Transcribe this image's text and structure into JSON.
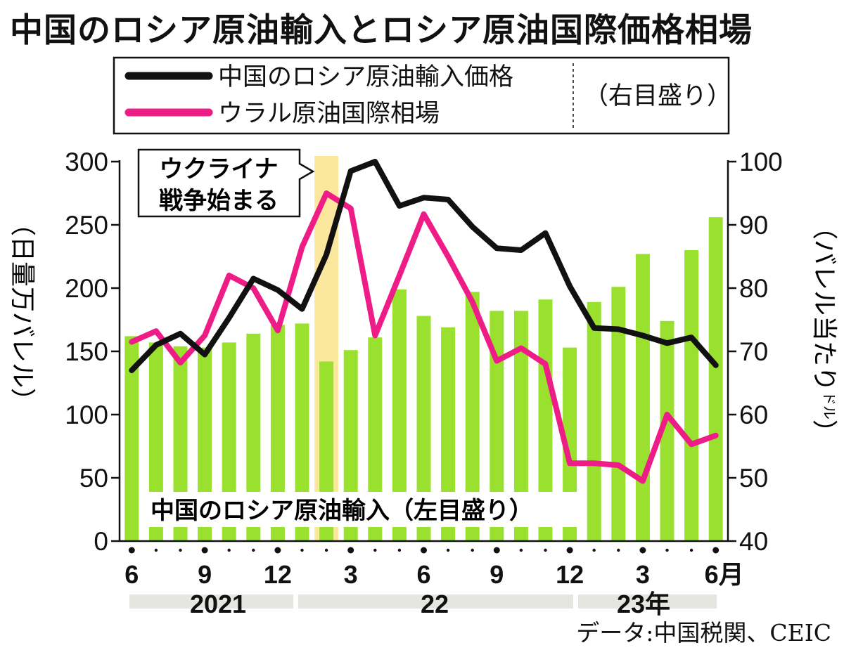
{
  "title": "中国のロシア原油輸入とロシア原油国際価格相場",
  "legend": {
    "price_label": "中国のロシア原油輸入価格",
    "market_label": "ウラル原油国際相場",
    "right_axis_note": "（右目盛り）"
  },
  "annotation": {
    "line1": "ウクライナ",
    "line2": "戦争始まる"
  },
  "bar_label": "中国のロシア原油輸入（左目盛り）",
  "left_axis_label": "（日量万バレル）",
  "right_axis_label": "（バレル当たり",
  "right_axis_unit": "ドル",
  "right_axis_close": "）",
  "source": "データ:中国税関、CEIC",
  "year_labels": [
    "2021",
    "22",
    "23年"
  ],
  "x_tick_labels": [
    "6",
    "9",
    "12",
    "3",
    "6",
    "9",
    "12",
    "3",
    "6月"
  ],
  "colors": {
    "bars": "#99e02f",
    "price_line": "#111111",
    "market_line": "#ee1c87",
    "highlight": "#fbe79d",
    "year_band": "#e4e6df"
  },
  "chart_data": {
    "type": "bar+line",
    "months": [
      "2021-06",
      "2021-07",
      "2021-08",
      "2021-09",
      "2021-10",
      "2021-11",
      "2021-12",
      "2022-01",
      "2022-02",
      "2022-03",
      "2022-04",
      "2022-05",
      "2022-06",
      "2022-07",
      "2022-08",
      "2022-09",
      "2022-10",
      "2022-11",
      "2022-12",
      "2023-01",
      "2023-02",
      "2023-03",
      "2023-04",
      "2023-05",
      "2023-06"
    ],
    "left_axis": {
      "ylim": [
        0,
        300
      ],
      "ticks": [
        0,
        50,
        100,
        150,
        200,
        250,
        300
      ],
      "unit": "日量万バレル"
    },
    "right_axis": {
      "ylim": [
        40,
        100
      ],
      "ticks": [
        40,
        50,
        60,
        70,
        80,
        90,
        100
      ],
      "unit": "ドル/バレル"
    },
    "series": [
      {
        "name": "中国のロシア原油輸入（左目盛り）",
        "type": "bar",
        "axis": "left",
        "values": [
          162,
          157,
          154,
          153,
          157,
          164,
          171,
          172,
          142,
          151,
          161,
          199,
          178,
          169,
          197,
          182,
          182,
          191,
          153,
          189,
          201,
          227,
          174,
          230,
          256
        ]
      },
      {
        "name": "中国のロシア原油輸入価格",
        "type": "line",
        "axis": "right",
        "values": [
          67,
          71,
          72.8,
          69.5,
          75.3,
          81.5,
          79.7,
          76.7,
          85.3,
          98.5,
          100,
          93,
          94.3,
          94,
          89.7,
          86.3,
          86,
          88.7,
          80.3,
          73.7,
          73.5,
          72.5,
          71.3,
          72.2,
          67.8
        ]
      },
      {
        "name": "ウラル原油国際相場",
        "type": "line",
        "axis": "right",
        "values": [
          71.5,
          73.2,
          68.2,
          72.5,
          82,
          80,
          73.3,
          86.5,
          95,
          92.6,
          72.5,
          82,
          91.7,
          85,
          77.8,
          68.5,
          70.5,
          68,
          52.3,
          52.3,
          52,
          49.5,
          60,
          55.3,
          56.7
        ]
      }
    ],
    "highlight_month": "2022-02",
    "highlight_note": "ウクライナ戦争始まる"
  }
}
